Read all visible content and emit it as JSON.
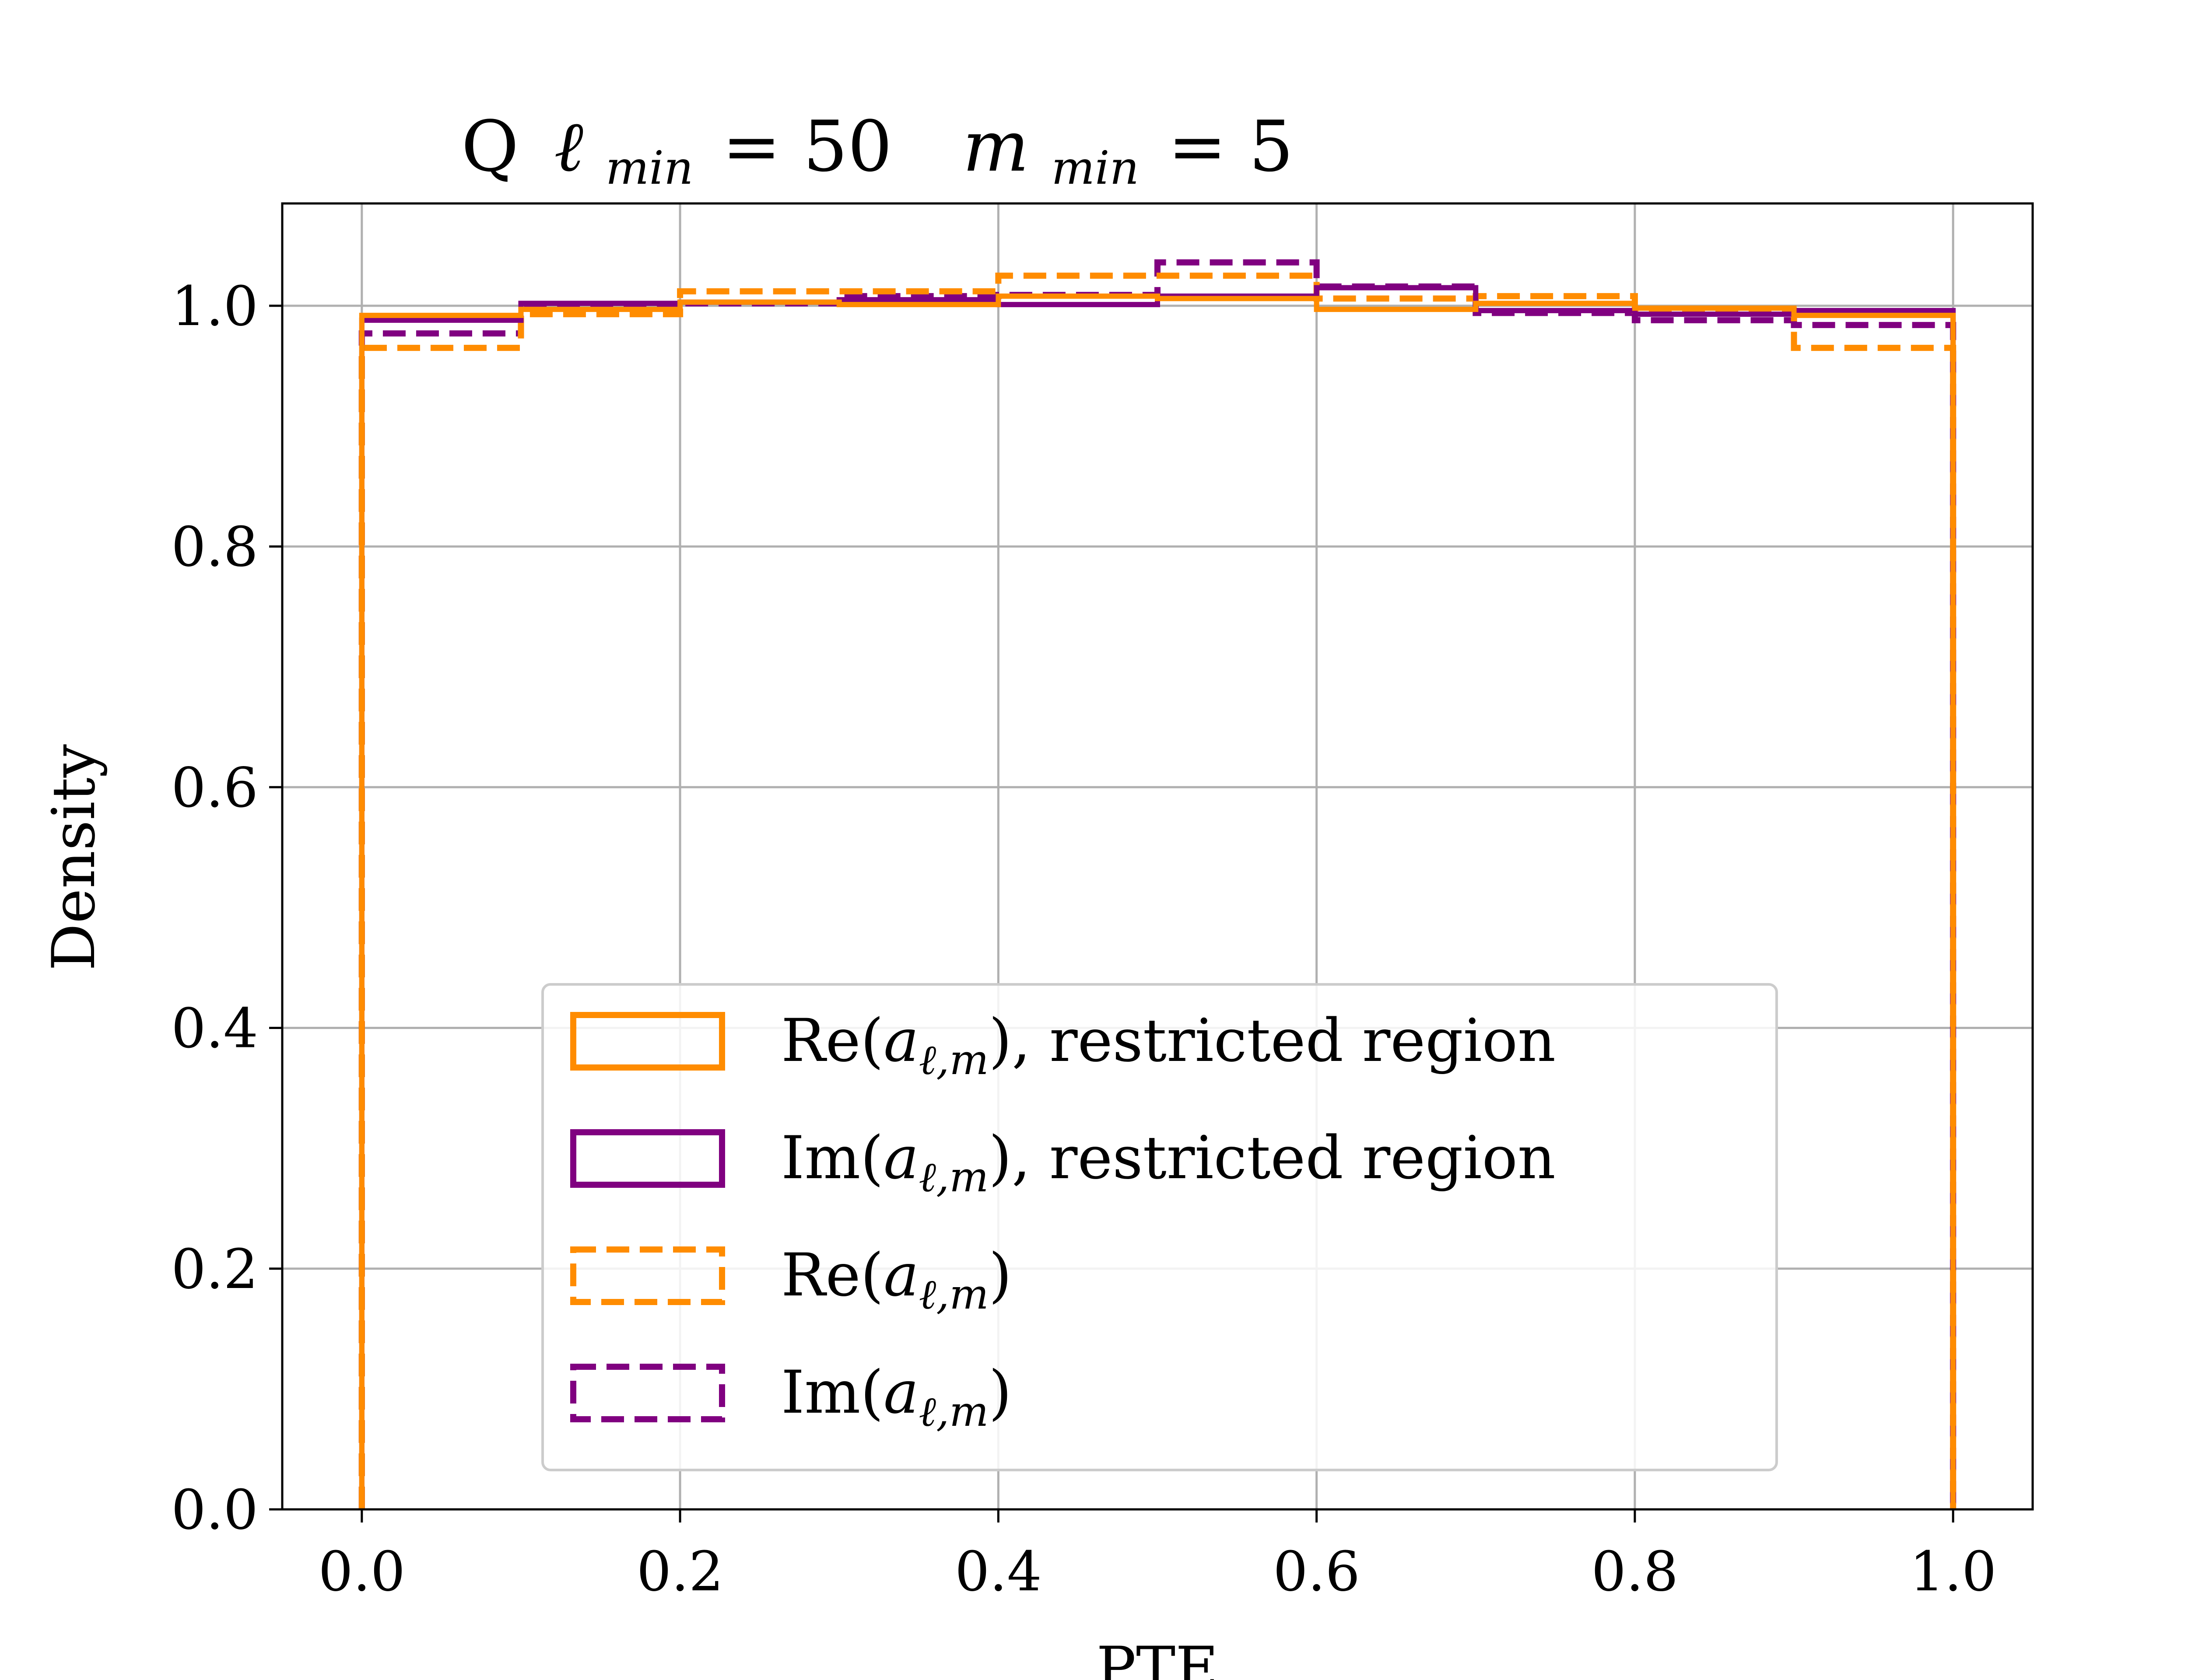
{
  "chart_data": {
    "type": "histogram-step",
    "title": {
      "prefix": "Q",
      "l_sym": "ℓ",
      "l_sub": "min",
      "l_val": "= 50",
      "m_sym": "m",
      "m_sub": "min",
      "m_val": "= 5"
    },
    "xlabel": "PTE",
    "ylabel": "Density",
    "xlim": [
      -0.05,
      1.05
    ],
    "ylim": [
      0.0,
      1.085
    ],
    "xticks": [
      0.0,
      0.2,
      0.4,
      0.6,
      0.8,
      1.0
    ],
    "xtick_labels": [
      "0.0",
      "0.2",
      "0.4",
      "0.6",
      "0.8",
      "1.0"
    ],
    "yticks": [
      0.0,
      0.2,
      0.4,
      0.6,
      0.8,
      1.0
    ],
    "ytick_labels": [
      "0.0",
      "0.2",
      "0.4",
      "0.6",
      "0.8",
      "1.0"
    ],
    "grid": true,
    "legend_position": "lower-center",
    "bin_edges": [
      0.0,
      0.1,
      0.2,
      0.3,
      0.4,
      0.5,
      0.6,
      0.7,
      0.8,
      0.9,
      1.0
    ],
    "series": [
      {
        "id": "re_restricted",
        "label_main": "Re(",
        "label_a": "a",
        "label_sub": "ℓ,m",
        "label_tail": "), restricted region",
        "color": "#ff8c00",
        "dashed": false,
        "values": [
          0.992,
          0.997,
          1.003,
          1.001,
          1.008,
          1.006,
          0.997,
          1.002,
          0.998,
          0.992
        ]
      },
      {
        "id": "im_restricted",
        "label_main": "Im(",
        "label_a": "a",
        "label_sub": "ℓ,m",
        "label_tail": "), restricted region",
        "color": "#800080",
        "dashed": false,
        "values": [
          0.988,
          1.002,
          1.003,
          1.005,
          1.001,
          1.008,
          1.015,
          0.996,
          0.993,
          0.996
        ]
      },
      {
        "id": "re_full",
        "label_main": "Re(",
        "label_a": "a",
        "label_sub": "ℓ,m",
        "label_tail": ")",
        "color": "#ff8c00",
        "dashed": true,
        "values": [
          0.965,
          0.993,
          1.012,
          1.012,
          1.025,
          1.025,
          1.006,
          1.008,
          0.996,
          0.965
        ]
      },
      {
        "id": "im_full",
        "label_main": "Im(",
        "label_a": "a",
        "label_sub": "ℓ,m",
        "label_tail": ")",
        "color": "#800080",
        "dashed": true,
        "values": [
          0.977,
          0.998,
          1.002,
          1.008,
          1.009,
          1.036,
          1.016,
          0.994,
          0.988,
          0.984
        ]
      }
    ]
  }
}
